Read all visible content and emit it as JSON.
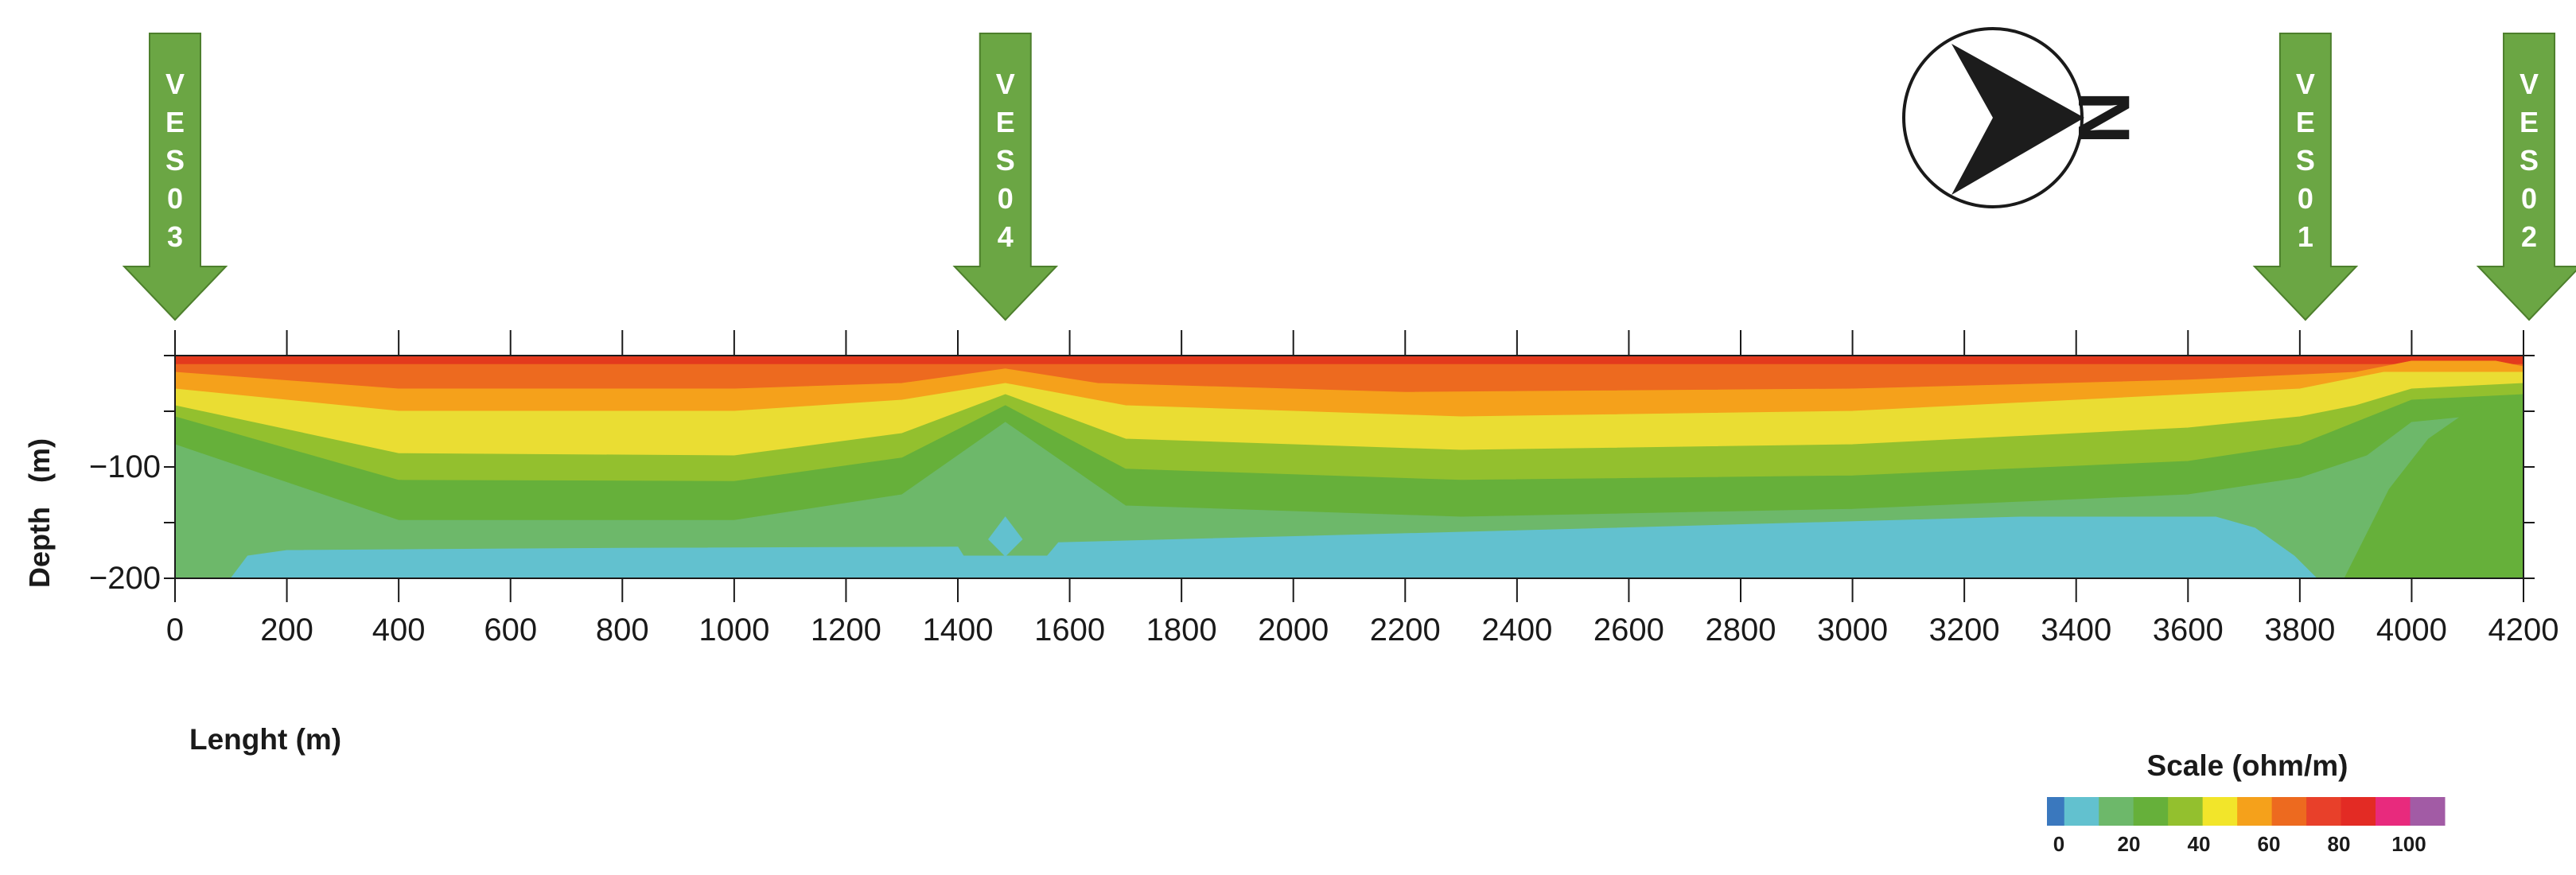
{
  "chart_data": {
    "type": "heatmap",
    "xlabel": "Lenght (m)",
    "ylabel": "Depth   (m)",
    "xlim": [
      0,
      4200
    ],
    "ylim": [
      -200,
      0
    ],
    "x_ticks": [
      0,
      200,
      400,
      600,
      800,
      1000,
      1200,
      1400,
      1600,
      1800,
      2000,
      2200,
      2400,
      2600,
      2800,
      3000,
      3200,
      3400,
      3600,
      3800,
      4000,
      4200
    ],
    "y_ticks": [
      -100,
      -200
    ],
    "ves_stations": [
      {
        "label": "VES03",
        "chars": [
          "V",
          "E",
          "S",
          "0",
          "3"
        ],
        "x": 0
      },
      {
        "label": "VES04",
        "chars": [
          "V",
          "E",
          "S",
          "0",
          "4"
        ],
        "x": 1485
      },
      {
        "label": "VES01",
        "chars": [
          "V",
          "E",
          "S",
          "0",
          "1"
        ],
        "x": 3810
      },
      {
        "label": "VES02",
        "chars": [
          "V",
          "E",
          "S",
          "0",
          "2"
        ],
        "x": 4210
      }
    ],
    "north_label": "N",
    "layers": [
      {
        "name": "surface",
        "color": "#e33a1d",
        "top": [
          [
            0,
            0
          ],
          [
            4200,
            0
          ]
        ],
        "bottom": [
          [
            0,
            -8
          ],
          [
            1300,
            -8
          ],
          [
            1485,
            -8
          ],
          [
            1700,
            -8
          ],
          [
            3700,
            -8
          ],
          [
            4200,
            -8
          ]
        ]
      },
      {
        "name": "orange-red",
        "color": "#ed6a1f",
        "top": [
          [
            0,
            -8
          ],
          [
            1300,
            -8
          ],
          [
            1485,
            -8
          ],
          [
            1700,
            -8
          ],
          [
            3700,
            -8
          ],
          [
            4200,
            -8
          ]
        ],
        "bottom": [
          [
            0,
            -15
          ],
          [
            400,
            -30
          ],
          [
            1000,
            -30
          ],
          [
            1300,
            -25
          ],
          [
            1485,
            -12
          ],
          [
            1650,
            -25
          ],
          [
            2200,
            -33
          ],
          [
            3000,
            -30
          ],
          [
            3600,
            -22
          ],
          [
            3900,
            -15
          ],
          [
            4000,
            -5
          ],
          [
            4150,
            -5
          ],
          [
            4200,
            -10
          ]
        ]
      },
      {
        "name": "orange",
        "color": "#f5a11b",
        "top": [
          [
            0,
            -15
          ],
          [
            400,
            -30
          ],
          [
            1000,
            -30
          ],
          [
            1300,
            -25
          ],
          [
            1485,
            -12
          ],
          [
            1650,
            -25
          ],
          [
            2200,
            -33
          ],
          [
            3000,
            -30
          ],
          [
            3600,
            -22
          ],
          [
            3900,
            -15
          ],
          [
            4000,
            -5
          ],
          [
            4150,
            -5
          ],
          [
            4200,
            -10
          ]
        ],
        "bottom": [
          [
            0,
            -30
          ],
          [
            400,
            -50
          ],
          [
            1000,
            -50
          ],
          [
            1300,
            -40
          ],
          [
            1485,
            -25
          ],
          [
            1700,
            -45
          ],
          [
            2300,
            -55
          ],
          [
            3000,
            -50
          ],
          [
            3600,
            -35
          ],
          [
            3800,
            -30
          ],
          [
            3900,
            -20
          ],
          [
            3950,
            -15
          ],
          [
            4200,
            -15
          ]
        ]
      },
      {
        "name": "yellow",
        "color": "#eadd33",
        "top": [
          [
            0,
            -30
          ],
          [
            400,
            -50
          ],
          [
            1000,
            -50
          ],
          [
            1300,
            -40
          ],
          [
            1485,
            -25
          ],
          [
            1700,
            -45
          ],
          [
            2300,
            -55
          ],
          [
            3000,
            -50
          ],
          [
            3600,
            -35
          ],
          [
            3800,
            -30
          ],
          [
            3900,
            -20
          ],
          [
            3950,
            -15
          ],
          [
            4200,
            -15
          ]
        ],
        "bottom": [
          [
            0,
            -45
          ],
          [
            400,
            -88
          ],
          [
            1000,
            -90
          ],
          [
            1300,
            -70
          ],
          [
            1485,
            -35
          ],
          [
            1700,
            -75
          ],
          [
            2300,
            -85
          ],
          [
            3000,
            -80
          ],
          [
            3600,
            -65
          ],
          [
            3800,
            -55
          ],
          [
            3900,
            -45
          ],
          [
            4000,
            -30
          ],
          [
            4200,
            -25
          ]
        ]
      },
      {
        "name": "light-green",
        "color": "#93c02e",
        "top": [
          [
            0,
            -45
          ],
          [
            400,
            -88
          ],
          [
            1000,
            -90
          ],
          [
            1300,
            -70
          ],
          [
            1485,
            -35
          ],
          [
            1700,
            -75
          ],
          [
            2300,
            -85
          ],
          [
            3000,
            -80
          ],
          [
            3600,
            -65
          ],
          [
            3800,
            -55
          ],
          [
            3900,
            -45
          ],
          [
            4000,
            -30
          ],
          [
            4200,
            -25
          ]
        ],
        "bottom": [
          [
            0,
            -55
          ],
          [
            400,
            -112
          ],
          [
            1000,
            -113
          ],
          [
            1300,
            -92
          ],
          [
            1485,
            -45
          ],
          [
            1700,
            -102
          ],
          [
            2300,
            -112
          ],
          [
            3000,
            -108
          ],
          [
            3600,
            -95
          ],
          [
            3800,
            -80
          ],
          [
            3900,
            -60
          ],
          [
            4000,
            -40
          ],
          [
            4200,
            -35
          ]
        ]
      },
      {
        "name": "green",
        "color": "#66b03a",
        "top": [
          [
            0,
            -55
          ],
          [
            400,
            -112
          ],
          [
            1000,
            -113
          ],
          [
            1300,
            -92
          ],
          [
            1485,
            -45
          ],
          [
            1700,
            -102
          ],
          [
            2300,
            -112
          ],
          [
            3000,
            -108
          ],
          [
            3600,
            -95
          ],
          [
            3800,
            -80
          ],
          [
            3900,
            -60
          ],
          [
            4000,
            -40
          ],
          [
            4200,
            -35
          ]
        ],
        "bottom": [
          [
            0,
            -80
          ],
          [
            400,
            -148
          ],
          [
            1000,
            -148
          ],
          [
            1300,
            -125
          ],
          [
            1485,
            -60
          ],
          [
            1700,
            -135
          ],
          [
            2300,
            -145
          ],
          [
            3000,
            -138
          ],
          [
            3600,
            -125
          ],
          [
            3800,
            -110
          ],
          [
            3920,
            -90
          ],
          [
            4000,
            -60
          ],
          [
            4200,
            -50
          ]
        ]
      },
      {
        "name": "mid-green",
        "color": "#6db86a",
        "top": [
          [
            0,
            -80
          ],
          [
            400,
            -148
          ],
          [
            1000,
            -148
          ],
          [
            1300,
            -125
          ],
          [
            1485,
            -60
          ],
          [
            1700,
            -135
          ],
          [
            2300,
            -145
          ],
          [
            3000,
            -138
          ],
          [
            3600,
            -125
          ],
          [
            3800,
            -110
          ],
          [
            3920,
            -90
          ],
          [
            4000,
            -60
          ],
          [
            4200,
            -50
          ]
        ],
        "bottom": [
          [
            0,
            -200
          ],
          [
            4200,
            -200
          ]
        ]
      },
      {
        "name": "green-east",
        "color": "#66b03a",
        "polygon": [
          [
            3880,
            -200
          ],
          [
            3960,
            -120
          ],
          [
            4030,
            -75
          ],
          [
            4130,
            -40
          ],
          [
            4200,
            -40
          ],
          [
            4200,
            -200
          ]
        ]
      },
      {
        "name": "cyan-main",
        "color": "#62c1cf",
        "polygon": [
          [
            100,
            -200
          ],
          [
            130,
            -180
          ],
          [
            200,
            -175
          ],
          [
            800,
            -173
          ],
          [
            1400,
            -172
          ],
          [
            1410,
            -180
          ],
          [
            1560,
            -180
          ],
          [
            1580,
            -168
          ],
          [
            2500,
            -156
          ],
          [
            3300,
            -145
          ],
          [
            3650,
            -145
          ],
          [
            3720,
            -155
          ],
          [
            3790,
            -180
          ],
          [
            3830,
            -200
          ]
        ]
      },
      {
        "name": "cyan-pocket",
        "color": "#62c1cf",
        "polygon": [
          [
            1485,
            -145
          ],
          [
            1515,
            -165
          ],
          [
            1485,
            -180
          ],
          [
            1455,
            -165
          ]
        ]
      }
    ],
    "legend": {
      "title": "Scale (ohm/m)",
      "colors": [
        "#3a78be",
        "#62c1cf",
        "#6db86a",
        "#66b03a",
        "#93c02e",
        "#f2e52a",
        "#f5a11b",
        "#ed6a1f",
        "#e8402a",
        "#e32b24",
        "#e82a7d",
        "#a25ba5"
      ],
      "tick_labels": [
        "0",
        "20",
        "40",
        "60",
        "80",
        "100"
      ]
    }
  }
}
